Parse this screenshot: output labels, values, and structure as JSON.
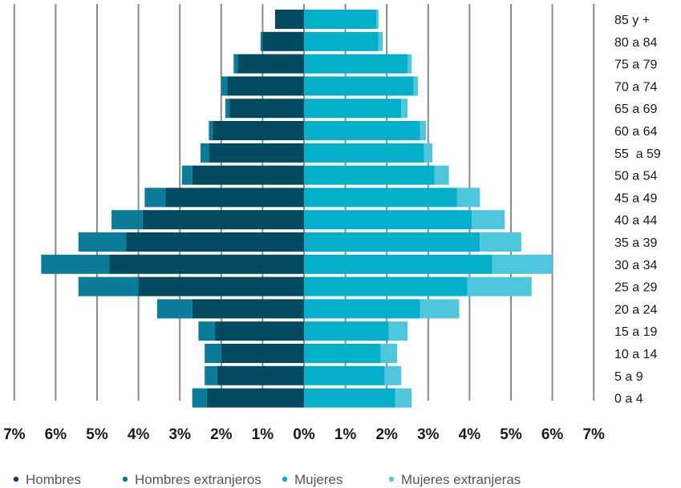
{
  "chart_data": {
    "type": "bar",
    "orientation": "horizontal",
    "subtype": "population-pyramid",
    "categories": [
      "0 a 4",
      "5 a 9",
      "10 a 14",
      "15 a 19",
      "20 a 24",
      "25 a 29",
      "30 a 34",
      "35 a 39",
      "40 a 44",
      "45 a 49",
      "50 a 54",
      "55  a 59",
      "60 a 64",
      "65 a 69",
      "70 a 74",
      "75 a 79",
      "80 a 84",
      "85 y +"
    ],
    "xticks": [
      "7%",
      "6%",
      "5%",
      "4%",
      "3%",
      "2%",
      "1%",
      "0%",
      "1%",
      "2%",
      "3%",
      "4%",
      "5%",
      "6%",
      "7%"
    ],
    "xlim": [
      -7,
      7
    ],
    "grid": true,
    "legend_position": "bottom",
    "series": [
      {
        "name": "Hombres",
        "side": "left",
        "color": "#024a60",
        "values": [
          2.35,
          2.1,
          2.0,
          2.15,
          2.7,
          4.0,
          4.7,
          4.3,
          3.9,
          3.35,
          2.7,
          2.3,
          2.2,
          1.8,
          1.85,
          1.6,
          1.0,
          0.7
        ]
      },
      {
        "name": "Hombres extranjeros",
        "side": "left",
        "color": "#0a7c99",
        "values": [
          0.35,
          0.3,
          0.4,
          0.4,
          0.85,
          1.45,
          1.65,
          1.15,
          0.75,
          0.5,
          0.25,
          0.2,
          0.1,
          0.1,
          0.15,
          0.1,
          0.05,
          0.0
        ]
      },
      {
        "name": "Mujeres",
        "side": "right",
        "color": "#04afcb",
        "values": [
          2.2,
          1.95,
          1.85,
          2.05,
          2.8,
          3.95,
          4.55,
          4.25,
          4.05,
          3.7,
          3.15,
          2.9,
          2.8,
          2.35,
          2.65,
          2.5,
          1.8,
          1.75
        ]
      },
      {
        "name": "Mujeres extranjeras",
        "side": "right",
        "color": "#4ec7dc",
        "values": [
          0.4,
          0.4,
          0.4,
          0.45,
          0.95,
          1.55,
          1.45,
          1.0,
          0.8,
          0.55,
          0.35,
          0.2,
          0.15,
          0.15,
          0.1,
          0.1,
          0.1,
          0.05
        ]
      }
    ]
  }
}
